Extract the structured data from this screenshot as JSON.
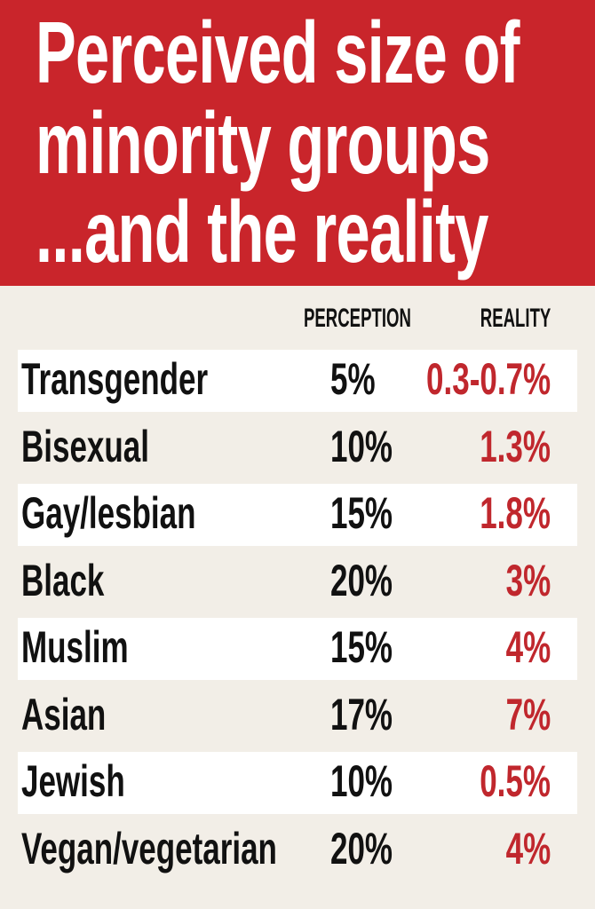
{
  "header": {
    "title_lines": [
      "Perceived size of",
      "minority groups",
      "...and the reality"
    ]
  },
  "table": {
    "columns": [
      "PERCEPTION",
      "REALITY"
    ],
    "rows": [
      [
        "Transgender",
        "5%",
        "0.3-0.7%"
      ],
      [
        "Bisexual",
        "10%",
        "1.3%"
      ],
      [
        "Gay/lesbian",
        "15%",
        "1.8%"
      ],
      [
        "Black",
        "20%",
        "3%"
      ],
      [
        "Muslim",
        "15%",
        "4%"
      ],
      [
        "Asian",
        "17%",
        "7%"
      ],
      [
        "Jewish",
        "10%",
        "0.5%"
      ],
      [
        "Vegan/vegetarian",
        "20%",
        "4%"
      ]
    ]
  }
}
